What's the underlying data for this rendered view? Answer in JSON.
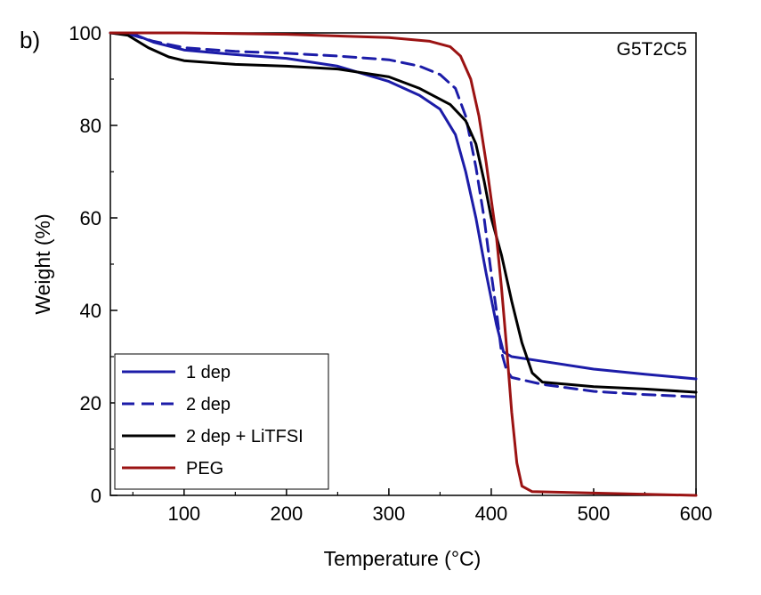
{
  "panel_label": "b)",
  "chart_data": {
    "type": "line",
    "annotation": "G5T2C5",
    "xlabel": "Temperature (°C)",
    "ylabel": "Weight (%)",
    "xlim": [
      28,
      600
    ],
    "ylim": [
      0,
      100
    ],
    "xticks": [
      100,
      200,
      300,
      400,
      500,
      600
    ],
    "yticks": [
      0,
      20,
      40,
      60,
      80,
      100
    ],
    "grid": false,
    "legend_position": "bottom-left",
    "series": [
      {
        "name": "1 dep",
        "color": "#1c1ca8",
        "dash": "solid",
        "points": [
          [
            28,
            100
          ],
          [
            50,
            99.8
          ],
          [
            70,
            98
          ],
          [
            100,
            96.3
          ],
          [
            150,
            95.3
          ],
          [
            200,
            94.5
          ],
          [
            250,
            92.8
          ],
          [
            300,
            89.5
          ],
          [
            330,
            86.5
          ],
          [
            350,
            83.5
          ],
          [
            365,
            78
          ],
          [
            375,
            70
          ],
          [
            385,
            60
          ],
          [
            395,
            48
          ],
          [
            405,
            37
          ],
          [
            412,
            31
          ],
          [
            420,
            30
          ],
          [
            450,
            29
          ],
          [
            500,
            27.3
          ],
          [
            550,
            26.2
          ],
          [
            600,
            25.2
          ]
        ]
      },
      {
        "name": "2 dep",
        "color": "#1c1ca8",
        "dash": "dashed",
        "points": [
          [
            28,
            100
          ],
          [
            50,
            99.5
          ],
          [
            70,
            98.2
          ],
          [
            100,
            96.8
          ],
          [
            150,
            96
          ],
          [
            200,
            95.6
          ],
          [
            250,
            95
          ],
          [
            300,
            94.2
          ],
          [
            330,
            92.8
          ],
          [
            350,
            91
          ],
          [
            365,
            88
          ],
          [
            375,
            82
          ],
          [
            385,
            71
          ],
          [
            393,
            60
          ],
          [
            400,
            48
          ],
          [
            405,
            40
          ],
          [
            410,
            31
          ],
          [
            415,
            27
          ],
          [
            420,
            25.5
          ],
          [
            450,
            24
          ],
          [
            500,
            22.5
          ],
          [
            550,
            21.8
          ],
          [
            600,
            21.3
          ]
        ]
      },
      {
        "name": "2 dep + LiTFSI",
        "color": "#000000",
        "dash": "solid",
        "points": [
          [
            28,
            100
          ],
          [
            45,
            99.5
          ],
          [
            65,
            96.8
          ],
          [
            85,
            94.8
          ],
          [
            100,
            94
          ],
          [
            150,
            93.2
          ],
          [
            200,
            92.8
          ],
          [
            250,
            92.2
          ],
          [
            300,
            90.5
          ],
          [
            330,
            88
          ],
          [
            360,
            84.5
          ],
          [
            375,
            81
          ],
          [
            385,
            76
          ],
          [
            393,
            68
          ],
          [
            400,
            60
          ],
          [
            410,
            52
          ],
          [
            420,
            42
          ],
          [
            430,
            33
          ],
          [
            440,
            26.5
          ],
          [
            450,
            24.5
          ],
          [
            500,
            23.5
          ],
          [
            550,
            23
          ],
          [
            600,
            22.3
          ]
        ]
      },
      {
        "name": "PEG",
        "color": "#9b1313",
        "dash": "solid",
        "points": [
          [
            28,
            100
          ],
          [
            100,
            100
          ],
          [
            200,
            99.7
          ],
          [
            300,
            99
          ],
          [
            340,
            98.2
          ],
          [
            360,
            97
          ],
          [
            370,
            95
          ],
          [
            380,
            90
          ],
          [
            388,
            82
          ],
          [
            395,
            72
          ],
          [
            400,
            64
          ],
          [
            405,
            56
          ],
          [
            410,
            45
          ],
          [
            415,
            32
          ],
          [
            420,
            18
          ],
          [
            425,
            7
          ],
          [
            430,
            2
          ],
          [
            440,
            0.8
          ],
          [
            500,
            0.5
          ],
          [
            600,
            0
          ]
        ]
      }
    ]
  }
}
